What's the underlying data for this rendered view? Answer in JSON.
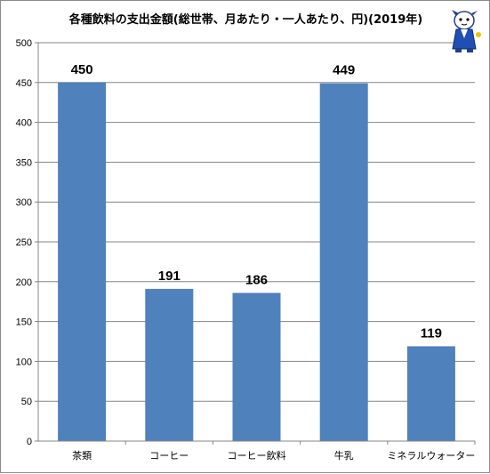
{
  "chart_data": {
    "type": "bar",
    "title": "各種飲料の支出金額(総世帯、月あたり・一人あたり、円)(2019年)",
    "categories": [
      "茶類",
      "コーヒー",
      "コーヒー飲料",
      "牛乳",
      "ミネラルウォーター"
    ],
    "values": [
      450,
      191,
      186,
      449,
      119
    ],
    "ylim": [
      0,
      500
    ],
    "yticks": [
      0,
      50,
      100,
      150,
      200,
      250,
      300,
      350,
      400,
      450,
      500
    ],
    "grid": true,
    "bar_color": "#4f81bd",
    "gridline_color": "#868686"
  },
  "mascot": {
    "icon": "mascot-icon"
  }
}
